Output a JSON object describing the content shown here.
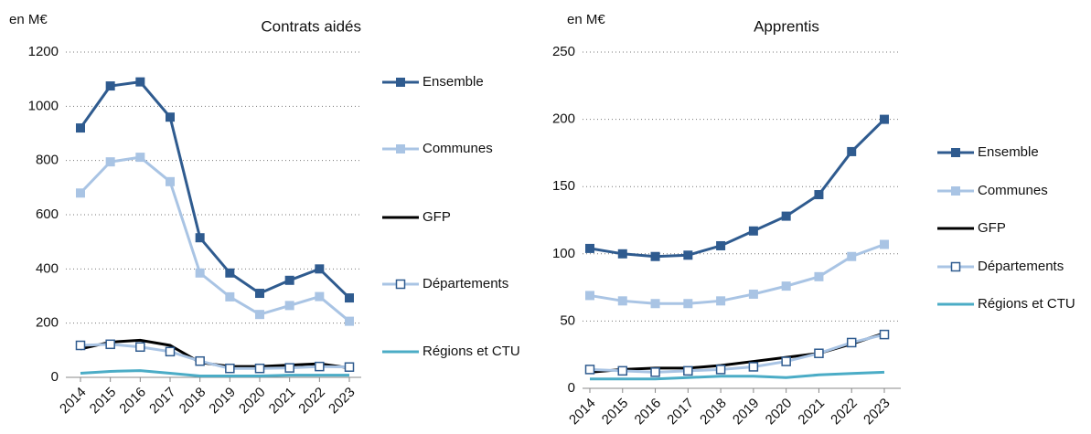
{
  "chart_data": [
    {
      "type": "line",
      "title": "Contrats aidés",
      "y_label": "en M€",
      "categories": [
        "2014",
        "2015",
        "2016",
        "2017",
        "2018",
        "2019",
        "2020",
        "2021",
        "2022",
        "2023"
      ],
      "ylim": [
        0,
        1200
      ],
      "yticks": [
        0,
        200,
        400,
        600,
        800,
        1000,
        1200
      ],
      "grid": true,
      "legend": "right",
      "series": [
        {
          "name": "Ensemble",
          "color": "#2f5b8f",
          "marker": "square",
          "values": [
            920,
            1075,
            1090,
            960,
            515,
            385,
            310,
            358,
            400,
            293
          ]
        },
        {
          "name": "Communes",
          "color": "#a9c4e4",
          "marker": "square",
          "values": [
            680,
            795,
            812,
            722,
            385,
            297,
            232,
            265,
            298,
            207
          ]
        },
        {
          "name": "GFP",
          "color": "#000000",
          "values": [
            105,
            130,
            137,
            118,
            55,
            40,
            40,
            45,
            50,
            35
          ]
        },
        {
          "name": "Départements",
          "color": "#a9c4e4",
          "marker": "open-square",
          "marker_edge": "#2f5b8f",
          "values": [
            118,
            122,
            112,
            95,
            60,
            33,
            33,
            35,
            40,
            38
          ]
        },
        {
          "name": "Régions et CTU",
          "color": "#4bacc6",
          "values": [
            15,
            22,
            25,
            15,
            5,
            5,
            5,
            8,
            8,
            8
          ]
        }
      ]
    },
    {
      "type": "line",
      "title": "Apprentis",
      "y_label": "en M€",
      "categories": [
        "2014",
        "2015",
        "2016",
        "2017",
        "2018",
        "2019",
        "2020",
        "2021",
        "2022",
        "2023"
      ],
      "ylim": [
        0,
        250
      ],
      "yticks": [
        0,
        50,
        100,
        150,
        200,
        250
      ],
      "grid": true,
      "legend": "right",
      "series": [
        {
          "name": "Ensemble",
          "color": "#2f5b8f",
          "marker": "square",
          "values": [
            104,
            100,
            98,
            99,
            106,
            117,
            128,
            144,
            176,
            200
          ]
        },
        {
          "name": "Communes",
          "color": "#a9c4e4",
          "marker": "square",
          "values": [
            69,
            65,
            63,
            63,
            65,
            70,
            76,
            83,
            98,
            107
          ]
        },
        {
          "name": "GFP",
          "color": "#000000",
          "values": [
            12,
            14,
            15,
            15,
            17,
            20,
            23,
            26,
            33,
            41
          ]
        },
        {
          "name": "Départements",
          "color": "#a9c4e4",
          "marker": "open-square",
          "marker_edge": "#2f5b8f",
          "values": [
            14,
            13,
            12,
            13,
            14,
            16,
            20,
            26,
            34,
            40
          ]
        },
        {
          "name": "Régions et CTU",
          "color": "#4bacc6",
          "values": [
            7,
            7,
            7,
            8,
            9,
            9,
            8,
            10,
            11,
            12
          ]
        }
      ]
    }
  ]
}
